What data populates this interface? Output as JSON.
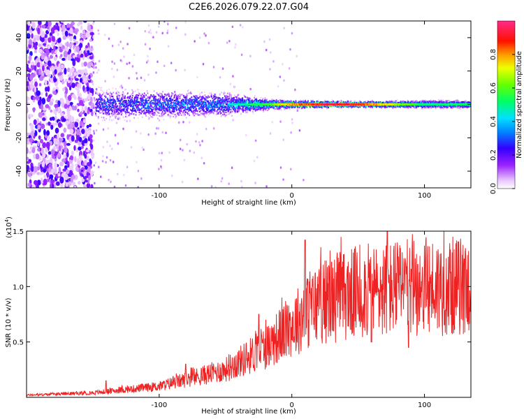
{
  "title": "C2E6.2026.079.22.07.G04",
  "colors": {
    "snr_line": "#ee2222",
    "spectrogram_bg": "#ffffff"
  },
  "chart_data": [
    {
      "type": "heatmap",
      "xlabel": "Height of straight line (km)",
      "ylabel": "Frequency (Hz)",
      "xlim": [
        -200,
        135
      ],
      "ylim": [
        -50,
        50
      ],
      "x_ticks": [
        -100,
        0,
        100
      ],
      "x_tick_labels": [
        "-100",
        "0",
        "100"
      ],
      "y_ticks": [
        -40,
        -20,
        0,
        20,
        40
      ],
      "y_tick_labels": [
        "-40",
        "-20",
        "0",
        "20",
        "40"
      ],
      "colorbar": {
        "label": "Normalized spectral amplitude",
        "range": [
          0,
          1
        ],
        "ticks": [
          0.0,
          0.2,
          0.4,
          0.6,
          0.8
        ],
        "tick_labels": [
          "0.0",
          "0.2",
          "0.4",
          "0.6",
          "0.8"
        ]
      },
      "band_envelope": {
        "x": [
          -150,
          -100,
          -50,
          -20,
          0,
          50,
          100,
          135
        ],
        "half_width_hz": [
          8,
          7,
          6,
          3,
          2,
          1.5,
          2,
          2
        ]
      },
      "peak_amplitude": {
        "x": [
          -150,
          -100,
          -50,
          -20,
          0,
          25,
          50,
          100,
          135
        ],
        "value": [
          0.35,
          0.4,
          0.45,
          0.6,
          0.85,
          1.0,
          0.95,
          0.55,
          0.55
        ]
      },
      "noise_region_x": [
        -200,
        -150
      ]
    },
    {
      "type": "line",
      "xlabel": "Height of straight line (km)",
      "ylabel": "SNR (10 * v/v)",
      "y_scale_label": "(x10",
      "y_scale_exponent": "4",
      "y_scale_suffix": ")",
      "xlim": [
        -200,
        135
      ],
      "ylim": [
        0,
        1.5
      ],
      "x_ticks": [
        -100,
        0,
        100
      ],
      "x_tick_labels": [
        "-100",
        "0",
        "100"
      ],
      "y_ticks": [
        0.5,
        1.0,
        1.5
      ],
      "y_tick_labels": [
        "0.5",
        "1.0",
        "1.5"
      ],
      "series": [
        {
          "name": "SNR",
          "trend_x": [
            -200,
            -150,
            -100,
            -50,
            -20,
            0,
            20,
            50,
            100,
            135
          ],
          "trend_y": [
            0.02,
            0.04,
            0.1,
            0.25,
            0.45,
            0.65,
            0.85,
            0.95,
            1.0,
            1.0
          ],
          "spike_x": [
            -140,
            -80,
            -25,
            10,
            30,
            72,
            95,
            130
          ],
          "spike_y": [
            0.15,
            0.3,
            0.75,
            1.42,
            1.22,
            1.52,
            1.2,
            1.25
          ],
          "dip_x": [
            60,
            88
          ],
          "dip_y": [
            0.5,
            0.45
          ]
        }
      ]
    }
  ]
}
